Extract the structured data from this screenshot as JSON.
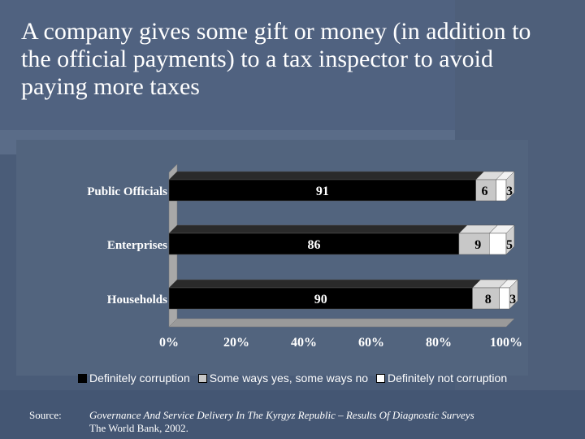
{
  "title": "A company gives some gift or money (in addition to the official payments) to a tax inspector to avoid paying more taxes",
  "chart_data": {
    "type": "bar",
    "orientation": "horizontal",
    "stacked": true,
    "percent_axis": true,
    "categories": [
      "Public Officials",
      "Enterprises",
      "Households"
    ],
    "series": [
      {
        "name": "Definitely corruption",
        "values": [
          91,
          86,
          90
        ],
        "color": "#000000"
      },
      {
        "name": "Some ways yes, some ways no",
        "values": [
          6,
          9,
          8
        ],
        "color": "#c8c8c8"
      },
      {
        "name": "Definitely not corruption",
        "values": [
          3,
          5,
          3
        ],
        "color": "#ffffff"
      }
    ],
    "x_ticks": [
      "0%",
      "20%",
      "40%",
      "60%",
      "80%",
      "100%"
    ],
    "xlim": [
      0,
      100
    ],
    "legend_position": "bottom"
  },
  "source": {
    "label": "Source:",
    "line1": "Governance And Service Delivery In The Kyrgyz Republic – Results Of Diagnostic Surveys",
    "line2": "The World Bank, 2002."
  }
}
